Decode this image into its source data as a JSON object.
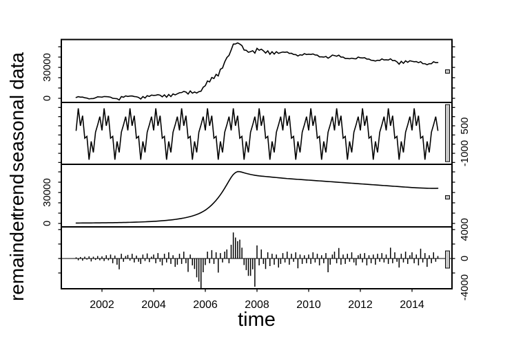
{
  "figure": {
    "kind": "R stl decomposition plot",
    "background": "#ffffff",
    "ink_color": "#000000",
    "range_bar_fill": "#c9c9c9"
  },
  "chart_data": {
    "type": "line",
    "subtype": "stl_seasonal_trend_decomposition",
    "title": "",
    "xlabel": "time",
    "x_start": 2001.0,
    "x_step_years": 0.0833333,
    "n_points": 169,
    "xlim": [
      2000.43,
      2015.55
    ],
    "x_ticks": [
      2002,
      2004,
      2006,
      2008,
      2010,
      2012,
      2014
    ],
    "grid": "off",
    "panels": [
      {
        "label": "data",
        "kind": "line",
        "source": "sum_of_components",
        "ylim": [
          -4000,
          57000
        ],
        "tick_step": 10000,
        "labeled_ticks": [
          0,
          30000
        ],
        "label_side": "left",
        "range_bar": {
          "center": 26000,
          "length": 3300
        }
      },
      {
        "label": "seasonal",
        "kind": "line",
        "monthly_pattern": [
          250,
          1450,
          500,
          1050,
          -175,
          -75,
          -1350,
          -350,
          -950,
          150,
          550,
          1000
        ],
        "ylim": [
          -1600,
          1774
        ],
        "tick_step": 500,
        "labeled_ticks": [
          500,
          -1000
        ],
        "label_side": "right",
        "range_bar": {
          "center": 100,
          "length": 3110
        }
      },
      {
        "label": "trend",
        "kind": "line",
        "values": [
          400,
          410,
          420,
          430,
          445,
          460,
          475,
          490,
          510,
          530,
          550,
          575,
          600,
          625,
          650,
          680,
          710,
          740,
          775,
          810,
          850,
          890,
          935,
          980,
          1030,
          1080,
          1140,
          1200,
          1270,
          1340,
          1420,
          1500,
          1590,
          1690,
          1790,
          1900,
          2020,
          2150,
          2290,
          2440,
          2600,
          2780,
          2970,
          3180,
          3400,
          3650,
          3920,
          4200,
          4520,
          4870,
          5250,
          5680,
          6150,
          6680,
          7270,
          7930,
          8670,
          9500,
          10500,
          11600,
          12900,
          14400,
          16100,
          18000,
          20100,
          22400,
          25000,
          27800,
          30900,
          34200,
          37700,
          41300,
          44700,
          47500,
          49300,
          50300,
          50200,
          49700,
          49100,
          48500,
          48000,
          47500,
          47100,
          46700,
          46400,
          46100,
          45900,
          45700,
          45500,
          45300,
          45100,
          44900,
          44700,
          44500,
          44300,
          44100,
          43900,
          43700,
          43500,
          43350,
          43200,
          43050,
          42900,
          42750,
          42600,
          42450,
          42300,
          42150,
          42000,
          41850,
          41700,
          41550,
          41400,
          41250,
          41100,
          40950,
          40800,
          40650,
          40500,
          40350,
          40200,
          40050,
          39900,
          39750,
          39600,
          39450,
          39300,
          39150,
          39000,
          38850,
          38700,
          38550,
          38400,
          38250,
          38100,
          37950,
          37800,
          37650,
          37500,
          37350,
          37200,
          37050,
          36900,
          36750,
          36600,
          36450,
          36300,
          36150,
          36000,
          35850,
          35700,
          35550,
          35400,
          35250,
          35100,
          34950,
          34800,
          34680,
          34560,
          34450,
          34350,
          34260,
          34180,
          34120,
          34080,
          34060,
          34050,
          34060,
          34100
        ],
        "ylim": [
          -3333,
          57333
        ],
        "tick_step": 10000,
        "labeled_ticks": [
          0,
          30000
        ],
        "label_side": "left",
        "range_bar": {
          "center": 25300,
          "length": 3300
        }
      },
      {
        "label": "remainder",
        "kind": "bars",
        "values": [
          150,
          -250,
          200,
          -300,
          250,
          -150,
          300,
          -400,
          250,
          -200,
          350,
          -250,
          300,
          -350,
          450,
          -250,
          550,
          -650,
          400,
          -850,
          -1500,
          650,
          -450,
          350,
          500,
          -300,
          650,
          -550,
          400,
          -450,
          -750,
          550,
          -350,
          700,
          -500,
          250,
          550,
          -650,
          750,
          -450,
          -950,
          650,
          -550,
          850,
          -750,
          450,
          -1150,
          -850,
          650,
          -750,
          950,
          -650,
          -1850,
          550,
          -950,
          -1450,
          -2600,
          -3200,
          -4150,
          -1900,
          -900,
          950,
          -650,
          1150,
          -750,
          850,
          -1950,
          750,
          -550,
          950,
          1250,
          -650,
          1900,
          3600,
          2900,
          2400,
          2600,
          1500,
          -900,
          -1600,
          -2400,
          -2400,
          -1500,
          -3900,
          1800,
          -950,
          1250,
          -750,
          -1450,
          850,
          -1050,
          650,
          -850,
          550,
          -1250,
          -750,
          750,
          -550,
          950,
          -850,
          650,
          -450,
          850,
          -1350,
          550,
          -750,
          450,
          -650,
          550,
          -750,
          850,
          -550,
          650,
          -950,
          450,
          -650,
          750,
          -1900,
          -850,
          550,
          950,
          -650,
          1450,
          -850,
          550,
          -750,
          650,
          -450,
          850,
          -550,
          -950,
          450,
          650,
          -550,
          750,
          -950,
          450,
          -650,
          550,
          -850,
          650,
          -450,
          750,
          -550,
          550,
          -750,
          1500,
          -650,
          850,
          -450,
          -1250,
          650,
          -550,
          950,
          -750,
          450,
          850,
          -650,
          550,
          -950,
          1350,
          -550,
          750,
          -1150,
          450,
          -650,
          850,
          -450,
          350
        ],
        "ylim": [
          -4180,
          4370
        ],
        "tick_step": 2000,
        "labeled_ticks": [
          4000,
          0,
          -4000
        ],
        "label_side": "right",
        "range_bar": {
          "center": -140,
          "length": 2375
        },
        "zero_line": true
      }
    ]
  }
}
